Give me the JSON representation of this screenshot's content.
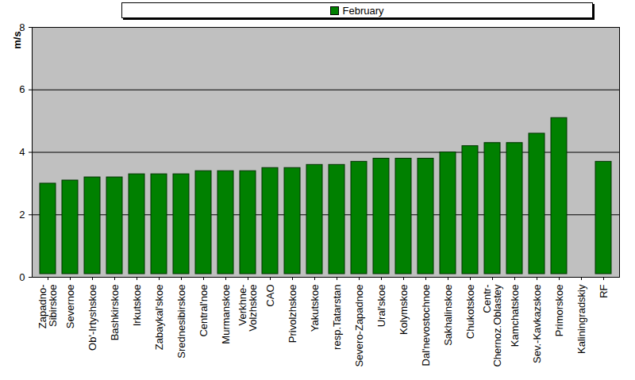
{
  "chart_data": {
    "type": "bar",
    "categories": [
      "Zapadno-\nSibirskoe",
      "Severnoe",
      "Ob'-Irtyshskoe",
      "Bashkirskoe",
      "Irkutskoe",
      "Zabaykal'skoe",
      "Srednesibirskoe",
      "Central'noe",
      "Murmanskoe",
      "Verkhne-\nVolzhskoe",
      "CAO",
      "Privolzhskoe",
      "Yakutskoe",
      "resp.Tatarstan",
      "Severo-Zapadnoe",
      "Ural'skoe",
      "Kolymskoe",
      "Dal'nevostochnoe",
      "Sakhalinskoe",
      "Chukotskoe",
      "Centr-\nChernoz.Oblastey",
      "Kamchatskoe",
      "Sev.-Kavkazskoe",
      "Primorskoe",
      "Kaliningradskiy",
      "RF"
    ],
    "series": [
      {
        "name": "February",
        "color": "#008000",
        "values": [
          3.1,
          3.2,
          3.3,
          3.3,
          3.4,
          3.4,
          3.4,
          3.5,
          3.5,
          3.5,
          3.6,
          3.6,
          3.7,
          3.7,
          3.8,
          3.9,
          3.9,
          3.9,
          4.1,
          4.3,
          4.4,
          4.4,
          4.7,
          5.2,
          null,
          3.8
        ]
      }
    ],
    "y_label": "m/s",
    "ylim": [
      0,
      8
    ],
    "yticks": [
      0,
      2,
      4,
      6,
      8
    ],
    "grid": true,
    "legend": "top"
  }
}
